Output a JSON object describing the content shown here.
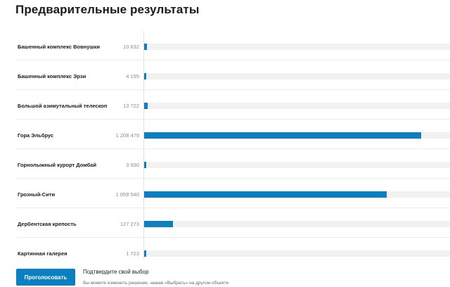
{
  "page": {
    "title": "Предварительные результаты"
  },
  "colors": {
    "accent": "#0a7fc1",
    "track": "#f1f1f1"
  },
  "results": [
    {
      "name": "Башенный комплекс Вовнушки",
      "count": "10 632",
      "share": 0.009
    },
    {
      "name": "Башенный комплекс Эрзи",
      "count": "4 195",
      "share": 0.004
    },
    {
      "name": "Большой азимутальный телескоп",
      "count": "13 722",
      "share": 0.011
    },
    {
      "name": "Гора Эльбрус",
      "count": "1 208 479",
      "share": 0.905
    },
    {
      "name": "Горнолыжный курорт Домбай",
      "count": "3 930",
      "share": 0.003
    },
    {
      "name": "Грозный-Сити",
      "count": "1 059 540",
      "share": 0.793
    },
    {
      "name": "Дербентская крепость",
      "count": "127 273",
      "share": 0.095
    },
    {
      "name": "Картинная галерея",
      "count": "1 723",
      "share": 0.001
    }
  ],
  "footer": {
    "vote_label": "Проголосовать",
    "confirm_title": "Подтвердите свой выбор",
    "confirm_hint": "Вы можете изменить решение, нажав «Выбрать» на другом объекте"
  }
}
